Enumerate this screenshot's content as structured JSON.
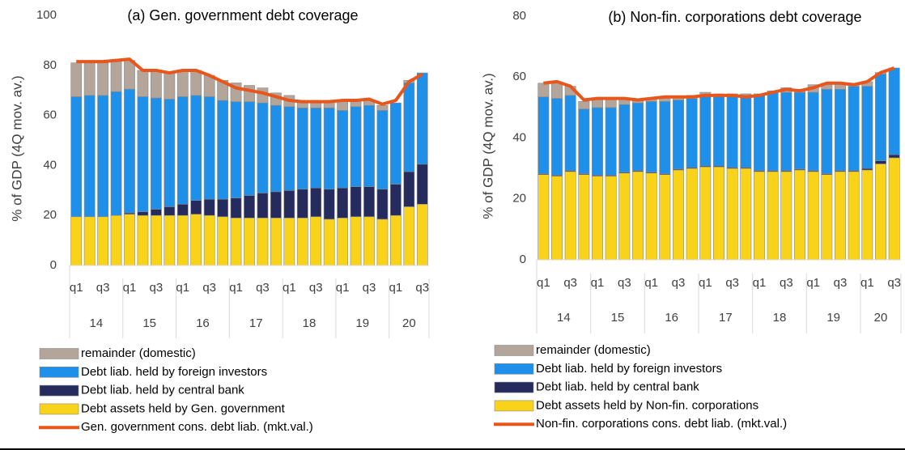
{
  "chart_data": [
    {
      "type": "bar",
      "stacked": true,
      "title": "(a) Gen. government debt coverage",
      "y_label": "% of GDP (4Q mov. av.)",
      "categories": [
        "q1",
        null,
        "q3",
        null,
        "q1",
        null,
        "q3",
        null,
        "q1",
        null,
        "q3",
        null,
        "q1",
        null,
        "q3",
        null,
        "q1",
        null,
        "q3",
        null,
        "q1",
        null,
        "q3",
        null,
        "q1",
        null,
        "q3"
      ],
      "group_labels": [
        "14",
        "15",
        "16",
        "17",
        "18",
        "19",
        "20"
      ],
      "ylim": [
        0,
        100
      ],
      "yticks": [
        0,
        20,
        40,
        60,
        80,
        100
      ],
      "series": [
        {
          "name": "remainder (domestic)",
          "color": "#b3a59a",
          "values": [
            13.5,
            13,
            13,
            12,
            11.5,
            10.5,
            11,
            10.5,
            10.5,
            10,
            8.5,
            8,
            7.5,
            6.5,
            6,
            5,
            4.5,
            3,
            3,
            3,
            4,
            2.5,
            2,
            2,
            0,
            1,
            0
          ]
        },
        {
          "name": "Debt liab. held by foreign investors",
          "color": "#1e90ea",
          "values": [
            48,
            48.5,
            48.5,
            49.5,
            49.5,
            46,
            44.5,
            43,
            43,
            42,
            41,
            39.5,
            38.5,
            37.5,
            36,
            34.5,
            33.5,
            32.5,
            32,
            32.5,
            31,
            32,
            32.5,
            31.5,
            32.5,
            35.5,
            36.5
          ]
        },
        {
          "name": "Debt liab. held by central bank",
          "color": "#262b5e",
          "values": [
            0,
            0,
            0,
            0,
            0.5,
            1.5,
            2.5,
            3.5,
            4.5,
            5.5,
            6.5,
            7,
            8,
            9,
            10,
            10.5,
            11,
            11.5,
            11.5,
            12,
            12,
            12,
            12,
            12,
            12.5,
            14,
            16
          ]
        },
        {
          "name": "Debt assets held by Gen. government",
          "color": "#f8d31a",
          "values": [
            19.5,
            19.5,
            19.5,
            20,
            20.5,
            20,
            20,
            20,
            20,
            20.5,
            20,
            19.5,
            19,
            19,
            19,
            19,
            19,
            19,
            19.5,
            18.5,
            19,
            19.5,
            19.5,
            18.5,
            20,
            23.5,
            24.5
          ]
        },
        {
          "name": "Gen. government cons. debt liab. (mkt.val.)",
          "type": "line",
          "color": "#e8561c",
          "values": [
            81.5,
            81.5,
            81.5,
            82,
            82.5,
            78,
            78,
            77,
            78,
            78,
            76,
            73.5,
            71,
            70,
            69,
            67.5,
            66,
            65.5,
            65.5,
            65.5,
            66,
            66,
            66.5,
            64.5,
            66,
            73.5,
            76.5
          ]
        }
      ]
    },
    {
      "type": "bar",
      "stacked": true,
      "title": "(b) Non-fin. corporations debt coverage",
      "y_label": "% of GDP (4Q mov. av.)",
      "categories": [
        "q1",
        null,
        "q3",
        null,
        "q1",
        null,
        "q3",
        null,
        "q1",
        null,
        "q3",
        null,
        "q1",
        null,
        "q3",
        null,
        "q1",
        null,
        "q3",
        null,
        "q1",
        null,
        "q3",
        null,
        "q1",
        null,
        "q3"
      ],
      "group_labels": [
        "14",
        "15",
        "16",
        "17",
        "18",
        "19",
        "20"
      ],
      "ylim": [
        0,
        80
      ],
      "yticks": [
        0,
        20,
        40,
        60,
        80
      ],
      "series": [
        {
          "name": "remainder (domestic)",
          "color": "#b3a59a",
          "values": [
            4.5,
            5,
            3,
            2.5,
            3,
            3,
            2,
            1,
            1,
            1.5,
            1,
            1,
            1,
            0.5,
            0.5,
            0.5,
            0.5,
            0.5,
            1.5,
            1,
            2.5,
            2,
            2,
            1,
            1.5,
            0.5,
            0
          ]
        },
        {
          "name": "Debt liab. held by foreign investors",
          "color": "#1e90ea",
          "values": [
            25.2,
            25.2,
            24.7,
            21.2,
            22.2,
            22.2,
            22.2,
            22.2,
            23.2,
            23.7,
            22.7,
            22.7,
            23.2,
            23.2,
            23.7,
            23.7,
            24.7,
            25.7,
            25.7,
            25.2,
            25.7,
            27.7,
            26.7,
            27.7,
            27,
            28.5,
            28.5
          ]
        },
        {
          "name": "Debt liab. held by central bank",
          "color": "#262b5e",
          "values": [
            0.3,
            0.3,
            0.3,
            0.3,
            0.3,
            0.3,
            0.3,
            0.3,
            0.3,
            0.3,
            0.3,
            0.3,
            0.3,
            0.3,
            0.3,
            0.3,
            0.3,
            0.3,
            0.3,
            0.3,
            0.3,
            0.3,
            0.3,
            0.3,
            0.5,
            1,
            1
          ]
        },
        {
          "name": "Debt assets held by Non-fin. corporations",
          "color": "#f8d31a",
          "values": [
            28,
            27.5,
            29,
            28,
            27.5,
            27.5,
            28.5,
            29,
            28.5,
            28,
            29.5,
            30,
            30.5,
            30.5,
            30,
            30,
            29,
            29,
            29,
            29.5,
            29,
            28,
            29,
            29,
            29.5,
            31.5,
            33.5
          ]
        },
        {
          "name": "Non-fin. corporations cons. debt liab. (mkt.val.)",
          "type": "line",
          "color": "#e8561c",
          "values": [
            58,
            58.5,
            57,
            52.5,
            53,
            53,
            53,
            52.5,
            53,
            53.5,
            53.5,
            53.5,
            54,
            54,
            54,
            53.5,
            54,
            55,
            56,
            55.5,
            56.5,
            58,
            58,
            57.5,
            58.5,
            61.5,
            63
          ]
        }
      ]
    }
  ]
}
